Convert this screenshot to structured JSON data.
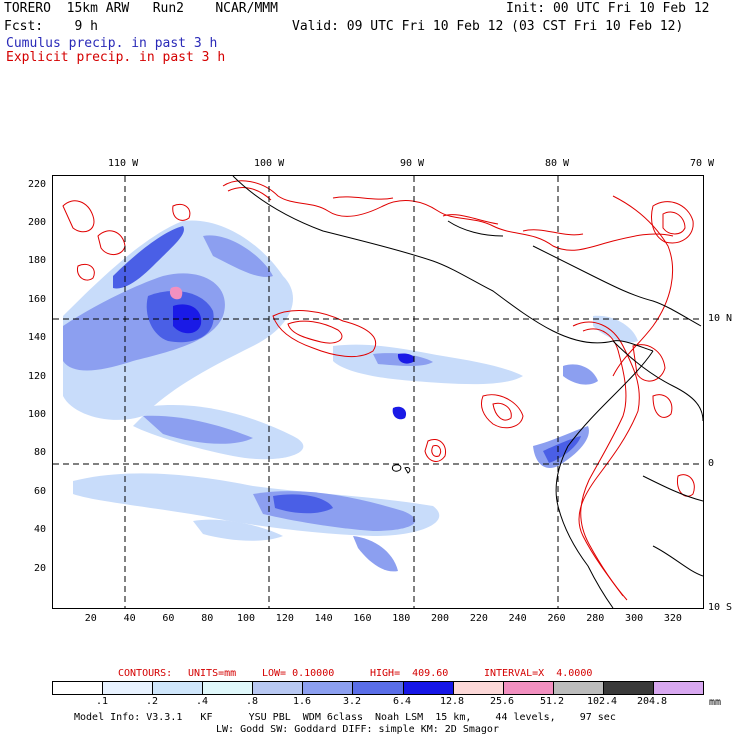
{
  "header": {
    "line1_left": "TORERO  15km ARW   Run2    NCAR/MMM",
    "line1_right": "Init: 00 UTC Fri 10 Feb 12",
    "line2_left": "Fcst:    9 h",
    "line2_right": "Valid: 09 UTC Fri 10 Feb 12 (03 CST Fri 10 Feb 12)",
    "cumulus_label": "Cumulus precip. in past 3 h",
    "explicit_label": "Explicit precip. in past 3 h"
  },
  "map": {
    "top_lon_labels": [
      "110 W",
      "100 W",
      "90 W",
      "80 W",
      "70 W"
    ],
    "right_lat_labels": [
      "10 N",
      "0",
      "10 S"
    ],
    "y_ticks": [
      "220",
      "200",
      "180",
      "160",
      "140",
      "120",
      "100",
      "80",
      "60",
      "40",
      "20"
    ],
    "x_ticks": [
      "20",
      "40",
      "60",
      "80",
      "100",
      "120",
      "140",
      "160",
      "180",
      "200",
      "220",
      "240",
      "260",
      "280",
      "300",
      "320"
    ],
    "colors": {
      "cumulus_light": "#c8dcfa",
      "cumulus_mid": "#8c9ff0",
      "cumulus_strong": "#4a5fe6",
      "cumulus_heavy": "#1a1ae6",
      "explicit_contour": "#e00000",
      "coast": "#000000"
    }
  },
  "contour_info": {
    "contours": "CONTOURS:",
    "units": "UNITS=mm",
    "low": "LOW= 0.10000",
    "high": "HIGH=  409.60",
    "interval": "INTERVAL=X  4.0000"
  },
  "legend": {
    "labels": [
      ".1",
      ".2",
      ".4",
      ".8",
      "1.6",
      "3.2",
      "6.4",
      "12.8",
      "25.6",
      "51.2",
      "102.4",
      "204.8"
    ],
    "unit": "mm",
    "colors": [
      "#ffffff",
      "#e8f2ff",
      "#cfe6fb",
      "#e0f8fb",
      "#b8c8f2",
      "#8c9ff0",
      "#5a6ee8",
      "#1616e6",
      "#fcd8d8",
      "#f290c0",
      "#bcbcbc",
      "#3a3a3a",
      "#d8a8f0"
    ]
  },
  "footer": {
    "line1": "Model Info: V3.3.1   KF      YSU PBL  WDM 6class  Noah LSM  15 km,    44 levels,    97 sec",
    "line2": "LW: Godd SW: Goddard DIFF: simple KM: 2D Smagor"
  }
}
